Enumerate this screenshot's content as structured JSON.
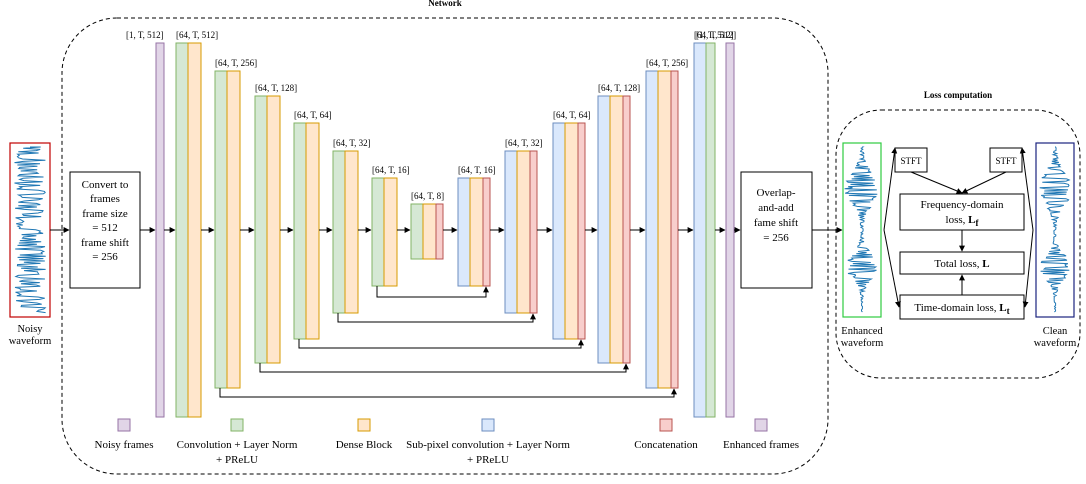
{
  "titles": {
    "network": "Network",
    "loss": "Loss computation"
  },
  "input": {
    "noisy_label_1": "Noisy",
    "noisy_label_2": "waveform"
  },
  "preprocess": {
    "line1": "Convert to",
    "line2": "frames",
    "line3": "frame size",
    "line4": "= 512",
    "line5": "frame shift",
    "line6": "= 256"
  },
  "postprocess": {
    "line1": "Overlap-",
    "line2": "and-add",
    "line3": "fame shift",
    "line4": "= 256"
  },
  "layers": [
    {
      "id": "in",
      "label": "[1, T, 512]",
      "colors": [
        "#e1d5e7"
      ],
      "edge": "#9673a6"
    },
    {
      "id": "e1",
      "label": "[64, T, 512]",
      "colors": [
        "#d5e8d4",
        "#ffe6cc"
      ],
      "edge": "#d79b00"
    },
    {
      "id": "e2",
      "label": "[64, T, 256]",
      "colors": [
        "#d5e8d4",
        "#ffe6cc"
      ],
      "edge": "#d79b00"
    },
    {
      "id": "e3",
      "label": "[64, T, 128]",
      "colors": [
        "#d5e8d4",
        "#ffe6cc"
      ],
      "edge": "#d79b00"
    },
    {
      "id": "e4",
      "label": "[64, T, 64]",
      "colors": [
        "#d5e8d4",
        "#ffe6cc"
      ],
      "edge": "#d79b00"
    },
    {
      "id": "e5",
      "label": "[64, T, 32]",
      "colors": [
        "#d5e8d4",
        "#ffe6cc"
      ],
      "edge": "#d79b00"
    },
    {
      "id": "e6",
      "label": "[64, T, 16]",
      "colors": [
        "#d5e8d4",
        "#ffe6cc"
      ],
      "edge": "#d79b00"
    },
    {
      "id": "b",
      "label": "[64, T, 8]",
      "colors": [
        "#d5e8d4",
        "#ffe6cc",
        "#f8cecc"
      ],
      "edge": "#b85450"
    },
    {
      "id": "d1",
      "label": "[64, T, 16]",
      "colors": [
        "#dae8fc",
        "#ffe6cc",
        "#f8cecc"
      ],
      "edge": "#b85450"
    },
    {
      "id": "d2",
      "label": "[64, T, 32]",
      "colors": [
        "#dae8fc",
        "#ffe6cc",
        "#f8cecc"
      ],
      "edge": "#b85450"
    },
    {
      "id": "d3",
      "label": "[64, T, 64]",
      "colors": [
        "#dae8fc",
        "#ffe6cc",
        "#f8cecc"
      ],
      "edge": "#b85450"
    },
    {
      "id": "d4",
      "label": "[64, T, 128]",
      "colors": [
        "#dae8fc",
        "#ffe6cc",
        "#f8cecc"
      ],
      "edge": "#b85450"
    },
    {
      "id": "d5",
      "label": "[64, T, 256]",
      "colors": [
        "#dae8fc",
        "#ffe6cc",
        "#f8cecc"
      ],
      "edge": "#b85450"
    },
    {
      "id": "d6",
      "label": "[64, T, 512]",
      "colors": [
        "#dae8fc",
        "#d5e8d4"
      ],
      "edge": "#82b366"
    },
    {
      "id": "out",
      "label": "[1, T, 512]",
      "colors": [
        "#e1d5e7"
      ],
      "edge": "#9673a6"
    }
  ],
  "legend": [
    {
      "label_1": "Noisy frames",
      "label_2": "",
      "fill": "#e1d5e7",
      "stroke": "#9673a6"
    },
    {
      "label_1": "Convolution + Layer Norm",
      "label_2": "+ PReLU",
      "fill": "#d5e8d4",
      "stroke": "#82b366"
    },
    {
      "label_1": "Dense Block",
      "label_2": "",
      "fill": "#ffe6cc",
      "stroke": "#d79b00"
    },
    {
      "label_1": "Sub-pixel convolution + Layer Norm",
      "label_2": "+ PReLU",
      "fill": "#dae8fc",
      "stroke": "#6c8ebf"
    },
    {
      "label_1": "Concatenation",
      "label_2": "",
      "fill": "#f8cecc",
      "stroke": "#b85450"
    },
    {
      "label_1": "Enhanced frames",
      "label_2": "",
      "fill": "#e1d5e7",
      "stroke": "#9673a6"
    }
  ],
  "loss": {
    "stft_left": "STFT",
    "stft_right": "STFT",
    "freq_line1": "Frequency-domain",
    "freq_line2": "loss, ",
    "freq_symbol": "L",
    "freq_sub": "f",
    "total": "Total loss, ",
    "total_symbol": "L",
    "time": "Time-domain loss, ",
    "time_symbol": "L",
    "time_sub": "t",
    "enhanced_label_1": "Enhanced",
    "enhanced_label_2": "waveform",
    "clean_label_1": "Clean",
    "clean_label_2": "waveform"
  },
  "colors": {
    "waveform": "#1f77b4",
    "noisy_border": "#c00000",
    "enhanced_border": "#2ecc40",
    "clean_border": "#1a237e"
  }
}
